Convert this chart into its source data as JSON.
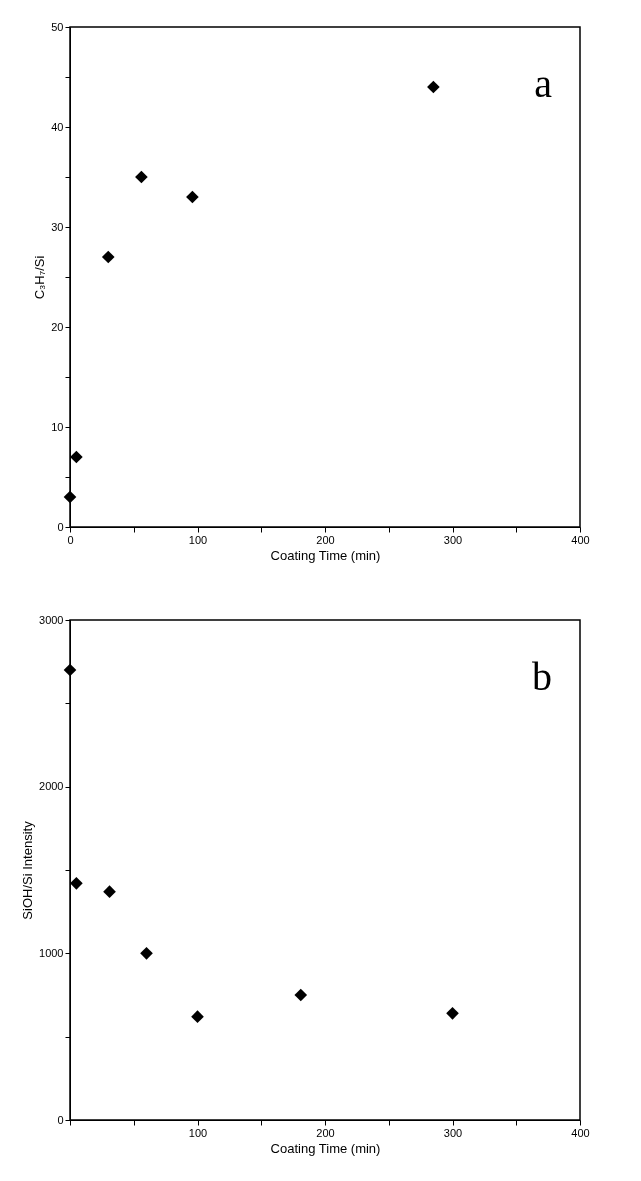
{
  "chart_data": [
    {
      "type": "scatter",
      "xlabel": "Coating Time (min)",
      "ylabel": "C₃H₇/Si",
      "x": [
        0,
        5,
        30,
        56,
        96,
        285
      ],
      "values": [
        3,
        7,
        27,
        35,
        33,
        44
      ],
      "color": "#000000",
      "marker": "diamond",
      "xlim": [
        0,
        400
      ],
      "ylim": [
        0,
        50
      ],
      "xticks": [
        0,
        {
          "value": 50,
          "label": null
        },
        100,
        {
          "value": 150,
          "label": null
        },
        200,
        {
          "value": 250,
          "label": null
        },
        300,
        {
          "value": 350,
          "label": null
        },
        400
      ],
      "yticks": [
        0,
        {
          "value": 5,
          "label": null
        },
        10,
        {
          "value": 15,
          "label": null
        },
        20,
        {
          "value": 25,
          "label": null
        },
        30,
        {
          "value": 35,
          "label": null
        },
        40,
        {
          "value": 45,
          "label": null
        },
        50
      ],
      "grid": false,
      "annotations": [
        "a"
      ]
    },
    {
      "type": "scatter",
      "xlabel": "Coating Time (min)",
      "ylabel": "SiOH/Si Intensity",
      "x": [
        0,
        5,
        31,
        60,
        100,
        181,
        300
      ],
      "values": [
        2700,
        1420,
        1370,
        1000,
        620,
        750,
        640
      ],
      "color": "#000000",
      "marker": "diamond",
      "xlim": [
        0,
        400
      ],
      "ylim": [
        0,
        3000
      ],
      "xticks": [
        {
          "value": 0,
          "label": null
        },
        {
          "value": 50,
          "label": null
        },
        100,
        {
          "value": 150,
          "label": null
        },
        200,
        {
          "value": 250,
          "label": null
        },
        300,
        {
          "value": 350,
          "label": null
        },
        400
      ],
      "yticks": [
        0,
        {
          "value": 500,
          "label": null
        },
        1000,
        {
          "value": 1500,
          "label": null
        },
        2000,
        {
          "value": 2500,
          "label": null
        },
        3000
      ],
      "grid": false,
      "annotations": [
        "b"
      ]
    }
  ]
}
